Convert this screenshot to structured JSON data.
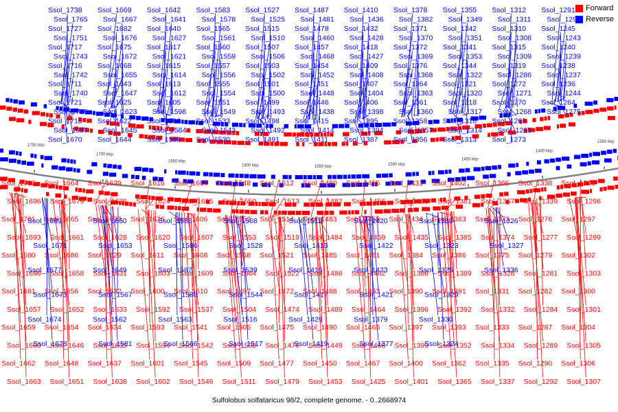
{
  "caption": "Sulfolobus solfataricus 98/2, complete genome. - 0..2668974",
  "legend": [
    {
      "label": "Forward",
      "color": "#ff0000"
    },
    {
      "label": "Reverse",
      "color": "#0000ff"
    }
  ],
  "colors": {
    "forward": "#ff0000",
    "reverse": "#0000ff",
    "backbone": "#808080"
  },
  "ticks": [
    "1750 kbp",
    "1700 kbp",
    "1650 kbp",
    "1600 kbp",
    "1550 kbp",
    "1500 kbp",
    "1450 kbp",
    "1400 kbp",
    "1350 kbp",
    "1300 kbp",
    "1250 kbp",
    "1200 kbp"
  ],
  "forward_labels": [
    "Ssol_1703",
    "Ssol_1696",
    "Ssol_1701",
    "Ssol_1693",
    "Ssol_1680",
    "Ssol_1698",
    "Ssol_1681",
    "Ssol_1657",
    "Ssol_1659",
    "Ssol_1660",
    "Ssol_1662",
    "Ssol_1663",
    "Ssol_1664",
    "Ssol_1679",
    "Ssol_1665",
    "Ssol_1661",
    "Ssol_1686",
    "Ssol_1658",
    "Ssol_1656",
    "Ssol_1652",
    "Ssol_1654",
    "Ssol_1646",
    "Ssol_1648",
    "Ssol_1651",
    "Ssol_1639",
    "Ssol_1636",
    "Ssol_1630",
    "Ssol_1628",
    "Ssol_1629",
    "Ssol_1631",
    "Ssol_1632",
    "Ssol_1633",
    "Ssol_1634",
    "Ssol_1635",
    "Ssol_1637",
    "Ssol_1638",
    "Ssol_1616",
    "Ssol_1624",
    "Ssol_1626",
    "Ssol_1620",
    "Ssol_1611",
    "Ssol_1603",
    "Ssol_1600",
    "Ssol_1592",
    "Ssol_1593",
    "Ssol_1594",
    "Ssol_1601",
    "Ssol_1602",
    "Ssol_1604",
    "Ssol_1605",
    "Ssol_1606",
    "Ssol_1607",
    "Ssol_1608",
    "Ssol_1609",
    "Ssol_1610",
    "Ssol_1537",
    "Ssol_1541",
    "Ssol_1542",
    "Ssol_1545",
    "Ssol_1546",
    "Ssol_1548",
    "Ssol_1550",
    "Ssol_1552",
    "Ssol_1553",
    "Ssol_1558",
    "Ssol_1564",
    "Ssol_1497",
    "Ssol_1504",
    "Ssol_1505",
    "Ssol_1508",
    "Ssol_1509",
    "Ssol_1511",
    "Ssol_1512",
    "Ssol_1513",
    "Ssol_1514",
    "Ssol_1519",
    "Ssol_1521",
    "Ssol_1522",
    "Ssol_1472",
    "Ssol_1474",
    "Ssol_1475",
    "Ssol_1476",
    "Ssol_1477",
    "Ssol_1479",
    "Ssol_1480",
    "Ssol_1482",
    "Ssol_1483",
    "Ssol_1484",
    "Ssol_1485",
    "Ssol_1486",
    "Ssol_1488",
    "Ssol_1489",
    "Ssol_1490",
    "Ssol_1449",
    "Ssol_1450",
    "Ssol_1453",
    "Ssol_1455",
    "Ssol_1456",
    "Ssol_1458",
    "Ssol_1459",
    "Ssol_1461",
    "Ssol_1462",
    "Ssol_1463",
    "Ssol_1464",
    "Ssol_1465",
    "Ssol_1466",
    "Ssol_1467",
    "Ssol_1425",
    "Ssol_1431",
    "Ssol_1433",
    "Ssol_1434",
    "Ssol_1435",
    "Ssol_1384",
    "Ssol_1388",
    "Ssol_1390",
    "Ssol_1396",
    "Ssol_1397",
    "Ssol_1399",
    "Ssol_1400",
    "Ssol_1401",
    "Ssol_1402",
    "Ssol_1381",
    "Ssol_1383",
    "Ssol_1385",
    "Ssol_1386",
    "Ssol_1389",
    "Ssol_1391",
    "Ssol_1392",
    "Ssol_1393",
    "Ssol_1352",
    "Ssol_1362",
    "Ssol_1365",
    "Ssol_1366",
    "Ssol_1367",
    "Ssol_1373",
    "Ssol_1374",
    "Ssol_1375",
    "Ssol_1328",
    "Ssol_1331",
    "Ssol_1332",
    "Ssol_1333",
    "Ssol_1334",
    "Ssol_1335",
    "Ssol_1337",
    "Ssol_1338",
    "Ssol_1339",
    "Ssol_1276",
    "Ssol_1277",
    "Ssol_1279",
    "Ssol_1281",
    "Ssol_1282",
    "Ssol_1284",
    "Ssol_1287",
    "Ssol_1289",
    "Ssol_1290",
    "Ssol_1292",
    "Ssol_1293",
    "Ssol_1296",
    "Ssol_1297",
    "Ssol_1299",
    "Ssol_1302",
    "Ssol_1303",
    "Ssol_1300",
    "Ssol_1301",
    "Ssol_1304",
    "Ssol_1305",
    "Ssol_1306",
    "Ssol_1307"
  ],
  "reverse_lower_labels": [
    "Ssol_1689",
    "Ssol_1671",
    "Ssol_1677",
    "Ssol_1673",
    "Ssol_1674",
    "Ssol_1678",
    "Ssol_1650",
    "Ssol_1653",
    "Ssol_1649",
    "Ssol_1567",
    "Ssol_1562",
    "Ssol_1581",
    "Ssol_1585",
    "Ssol_1586",
    "Ssol_1587",
    "Ssol_1588",
    "Ssol_1563",
    "Ssol_1566",
    "Ssol_1568",
    "Ssol_1528",
    "Ssol_1539",
    "Ssol_1544",
    "Ssol_1516",
    "Ssol_1517",
    "Ssol_1518",
    "Ssol_1413",
    "Ssol_1416",
    "Ssol_1417",
    "Ssol_1429",
    "Ssol_1419",
    "Ssol_1420",
    "Ssol_1422",
    "Ssol_1423",
    "Ssol_1421",
    "Ssol_1379",
    "Ssol_1377",
    "Ssol_1380",
    "Ssol_1323",
    "Ssol_1325",
    "Ssol_1329",
    "Ssol_1330",
    "Ssol_1324",
    "Ssol_1326",
    "Ssol_1327",
    "Ssol_1336"
  ],
  "reverse_upper_labels": [
    "Ssol_1738",
    "Ssol_1765",
    "Ssol_1727",
    "Ssol_1751",
    "Ssol_1717",
    "Ssol_1743",
    "Ssol_1716",
    "Ssol_1742",
    "Ssol_1711",
    "Ssol_1740",
    "Ssol_1721",
    "Ssol_1718",
    "Ssol_1715",
    "Ssol_1687",
    "Ssol_1670",
    "Ssol_1669",
    "Ssol_1667",
    "Ssol_1682",
    "Ssol_1676",
    "Ssol_1675",
    "Ssol_1672",
    "Ssol_1668",
    "Ssol_1655",
    "Ssol_1643",
    "Ssol_1647",
    "Ssol_1625",
    "Ssol_1623",
    "Ssol_1622",
    "Ssol_1645",
    "Ssol_1644",
    "Ssol_1642",
    "Ssol_1641",
    "Ssol_1640",
    "Ssol_1627",
    "Ssol_1617",
    "Ssol_1621",
    "Ssol_1615",
    "Ssol_1614",
    "Ssol_1613",
    "Ssol_1612",
    "Ssol_1605",
    "Ssol_1598",
    "Ssol_1596",
    "Ssol_1584",
    "Ssol_1589",
    "Ssol_1583",
    "Ssol_1578",
    "Ssol_1565",
    "Ssol_1561",
    "Ssol_1560",
    "Ssol_1559",
    "Ssol_1557",
    "Ssol_1556",
    "Ssol_1555",
    "Ssol_1554",
    "Ssol_1551",
    "Ssol_1549",
    "Ssol_1533",
    "Ssol_1543",
    "Ssol_1530",
    "Ssol_1527",
    "Ssol_1525",
    "Ssol_1515",
    "Ssol_1510",
    "Ssol_1507",
    "Ssol_1506",
    "Ssol_1503",
    "Ssol_1502",
    "Ssol_1501",
    "Ssol_1500",
    "Ssol_1499",
    "Ssol_1493",
    "Ssol_1498",
    "Ssol_1492",
    "Ssol_1491",
    "Ssol_1487",
    "Ssol_1481",
    "Ssol_1478",
    "Ssol_1460",
    "Ssol_1457",
    "Ssol_1468",
    "Ssol_1454",
    "Ssol_1452",
    "Ssol_1451",
    "Ssol_1448",
    "Ssol_1446",
    "Ssol_1438",
    "Ssol_1415",
    "Ssol_1414",
    "Ssol_1411",
    "Ssol_1410",
    "Ssol_1436",
    "Ssol_1432",
    "Ssol_1428",
    "Ssol_1418",
    "Ssol_1427",
    "Ssol_1409",
    "Ssol_1408",
    "Ssol_1407",
    "Ssol_1404",
    "Ssol_1406",
    "Ssol_1398",
    "Ssol_1395",
    "Ssol_1394",
    "Ssol_1387",
    "Ssol_1378",
    "Ssol_1382",
    "Ssol_1371",
    "Ssol_1370",
    "Ssol_1372",
    "Ssol_1369",
    "Ssol_1376",
    "Ssol_1368",
    "Ssol_1364",
    "Ssol_1363",
    "Ssol_1361",
    "Ssol_1360",
    "Ssol_1358",
    "Ssol_1357",
    "Ssol_1356",
    "Ssol_1355",
    "Ssol_1349",
    "Ssol_1342",
    "Ssol_1351",
    "Ssol_1341",
    "Ssol_1353",
    "Ssol_1344",
    "Ssol_1322",
    "Ssol_1321",
    "Ssol_1320",
    "Ssol_1318",
    "Ssol_1317",
    "Ssol_1316",
    "Ssol_1314",
    "Ssol_1313",
    "Ssol_1312",
    "Ssol_1311",
    "Ssol_1310",
    "Ssol_1308",
    "Ssol_1315",
    "Ssol_1309",
    "Ssol_1319",
    "Ssol_1286",
    "Ssol_1272",
    "Ssol_1271",
    "Ssol_1270",
    "Ssol_1268",
    "Ssol_1267",
    "Ssol_1265",
    "Ssol_1273",
    "Ssol_1291",
    "Ssol_1295",
    "Ssol_1245",
    "Ssol_1243",
    "Ssol_1240",
    "Ssol_1239",
    "Ssol_1238",
    "Ssol_1237",
    "Ssol_1236",
    "Ssol_1244",
    "Ssol_1264",
    "Ssol_1275"
  ]
}
